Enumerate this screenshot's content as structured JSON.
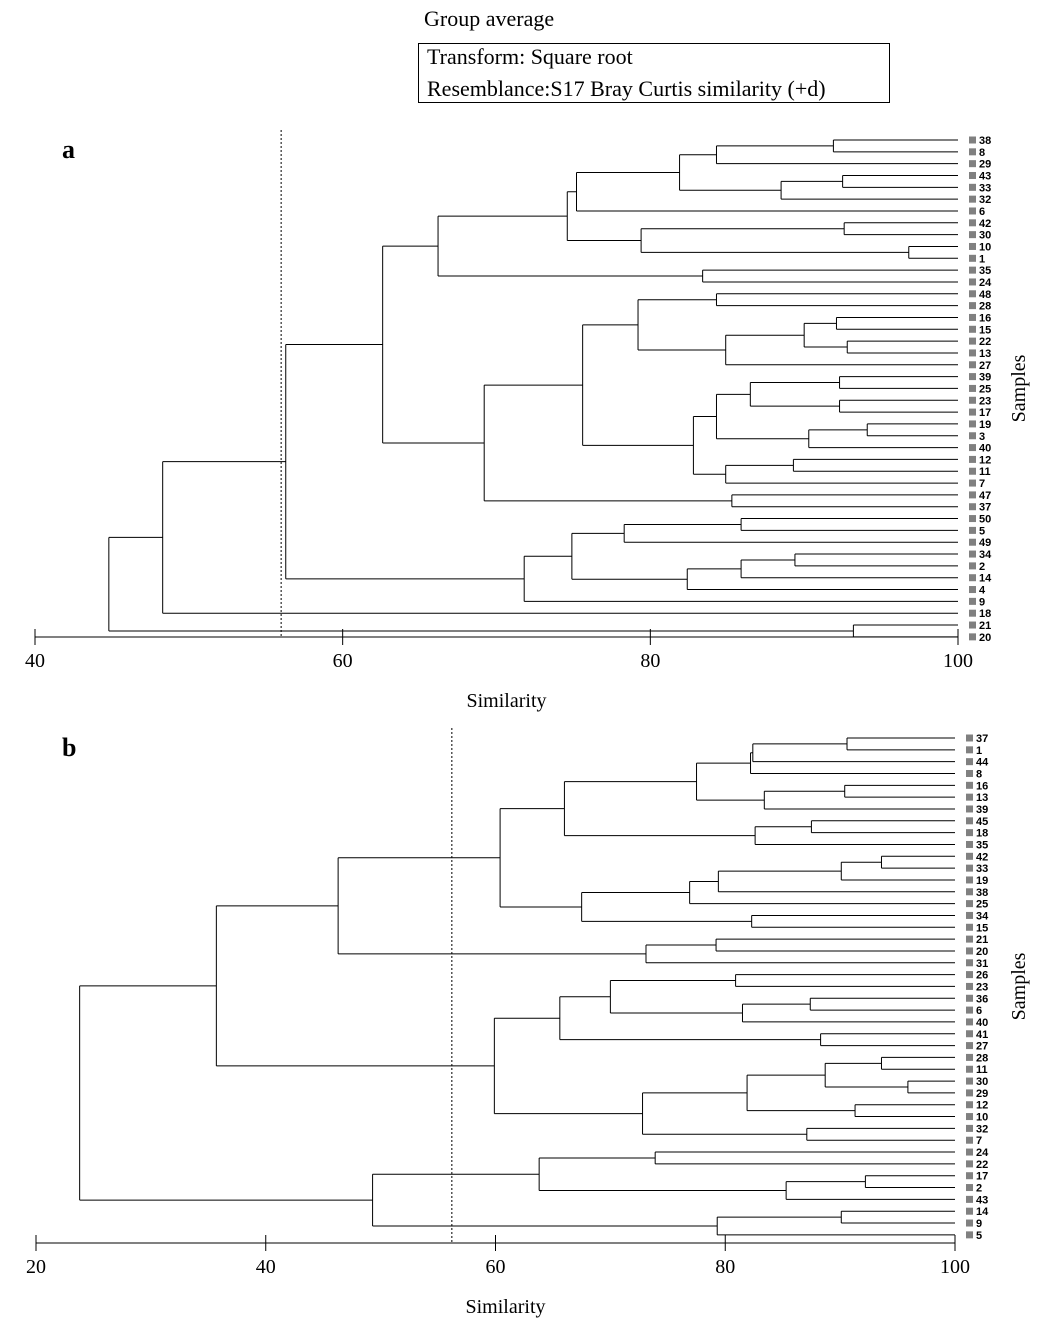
{
  "header": {
    "title": "Group average",
    "transform": "Transform: Square root",
    "resemblance": "Resemblance:S17 Bray Curtis similarity (+d)"
  },
  "chart_data": [
    {
      "type": "dendrogram",
      "panel_label": "a",
      "xlabel": "Similarity",
      "ylabel": "Samples",
      "xlim": [
        40,
        100
      ],
      "xticks": [
        40,
        60,
        80,
        100
      ],
      "cutoff_similarity": 56,
      "leaves": [
        "38",
        "8",
        "29",
        "43",
        "33",
        "32",
        "6",
        "42",
        "30",
        "10",
        "1",
        "35",
        "24",
        "48",
        "28",
        "16",
        "15",
        "22",
        "13",
        "27",
        "39",
        "25",
        "23",
        "17",
        "19",
        "3",
        "40",
        "12",
        "11",
        "7",
        "47",
        "37",
        "50",
        "5",
        "49",
        "34",
        "2",
        "14",
        "4",
        "9",
        "18",
        "21",
        "20"
      ],
      "tree": {
        "s": 44.8,
        "c": [
          {
            "s": 48.3,
            "c": [
              {
                "s": 56.3,
                "c": [
                  {
                    "s": 62.6,
                    "c": [
                      {
                        "s": 66.2,
                        "c": [
                          {
                            "s": 74.6,
                            "c": [
                              {
                                "s": 75.2,
                                "c": [
                                  {
                                    "s": 81.9,
                                    "c": [
                                      {
                                        "s": 84.3,
                                        "c": [
                                          {
                                            "s": 91.9,
                                            "c": [
                                              "38",
                                              "8"
                                            ]
                                          },
                                          "29"
                                        ]
                                      },
                                      {
                                        "s": 88.5,
                                        "c": [
                                          {
                                            "s": 92.5,
                                            "c": [
                                              "43",
                                              "33"
                                            ]
                                          },
                                          "32"
                                        ]
                                      }
                                    ]
                                  },
                                  "6"
                                ]
                              },
                              {
                                "s": 79.4,
                                "c": [
                                  {
                                    "s": 92.6,
                                    "c": [
                                      "42",
                                      "30"
                                    ]
                                  },
                                  {
                                    "s": 96.8,
                                    "c": [
                                      "10",
                                      "1"
                                    ]
                                  }
                                ]
                              }
                            ]
                          },
                          {
                            "s": 83.4,
                            "c": [
                              "35",
                              "24"
                            ]
                          }
                        ]
                      },
                      {
                        "s": 69.2,
                        "c": [
                          {
                            "s": 75.6,
                            "c": [
                              {
                                "s": 79.2,
                                "c": [
                                  {
                                    "s": 84.3,
                                    "c": [
                                      "48",
                                      "28"
                                    ]
                                  },
                                  {
                                    "s": 84.9,
                                    "c": [
                                      {
                                        "s": 90.0,
                                        "c": [
                                          {
                                            "s": 92.1,
                                            "c": [
                                              "16",
                                              "15"
                                            ]
                                          },
                                          {
                                            "s": 92.8,
                                            "c": [
                                              "22",
                                              "13"
                                            ]
                                          }
                                        ]
                                      },
                                      "27"
                                    ]
                                  }
                                ]
                              },
                              {
                                "s": 82.8,
                                "c": [
                                  {
                                    "s": 84.3,
                                    "c": [
                                      {
                                        "s": 86.5,
                                        "c": [
                                          {
                                            "s": 92.3,
                                            "c": [
                                              "39",
                                              "25"
                                            ]
                                          },
                                          {
                                            "s": 92.3,
                                            "c": [
                                              "23",
                                              "17"
                                            ]
                                          }
                                        ]
                                      },
                                      {
                                        "s": 90.3,
                                        "c": [
                                          {
                                            "s": 94.1,
                                            "c": [
                                              "19",
                                              "3"
                                            ]
                                          },
                                          "40"
                                        ]
                                      }
                                    ]
                                  },
                                  {
                                    "s": 84.9,
                                    "c": [
                                      {
                                        "s": 89.3,
                                        "c": [
                                          "12",
                                          "11"
                                        ]
                                      },
                                      "7"
                                    ]
                                  }
                                ]
                              }
                            ]
                          },
                          {
                            "s": 85.3,
                            "c": [
                              "47",
                              "37"
                            ]
                          }
                        ]
                      }
                    ]
                  },
                  {
                    "s": 71.8,
                    "c": [
                      {
                        "s": 74.9,
                        "c": [
                          {
                            "s": 78.3,
                            "c": [
                              {
                                "s": 85.9,
                                "c": [
                                  "50",
                                  "5"
                                ]
                              },
                              "49"
                            ]
                          },
                          {
                            "s": 82.4,
                            "c": [
                              {
                                "s": 85.9,
                                "c": [
                                  {
                                    "s": 89.4,
                                    "c": [
                                      "34",
                                      "2"
                                    ]
                                  },
                                  "14"
                                ]
                              },
                              "4"
                            ]
                          }
                        ]
                      },
                      "9"
                    ]
                  }
                ]
              },
              "18"
            ]
          },
          {
            "s": 93.2,
            "c": [
              "21",
              "20"
            ]
          }
        ]
      }
    },
    {
      "type": "dendrogram",
      "panel_label": "b",
      "xlabel": "Similarity",
      "ylabel": "Samples",
      "xlim": [
        20,
        100
      ],
      "xticks": [
        20,
        40,
        60,
        80,
        100
      ],
      "cutoff_similarity": 56.2,
      "leaves": [
        "37",
        "1",
        "44",
        "8",
        "16",
        "13",
        "39",
        "45",
        "18",
        "35",
        "42",
        "33",
        "19",
        "38",
        "25",
        "34",
        "15",
        "21",
        "20",
        "31",
        "26",
        "23",
        "36",
        "6",
        "40",
        "41",
        "27",
        "28",
        "11",
        "30",
        "29",
        "12",
        "10",
        "32",
        "7",
        "24",
        "22",
        "17",
        "2",
        "43",
        "14",
        "9",
        "5"
      ],
      "tree": {
        "s": 23.8,
        "c": [
          {
            "s": 35.7,
            "c": [
              {
                "s": 46.3,
                "c": [
                  {
                    "s": 60.4,
                    "c": [
                      {
                        "s": 66.0,
                        "c": [
                          {
                            "s": 77.5,
                            "c": [
                              {
                                "s": 82.2,
                                "c": [
                                  {
                                    "s": 82.4,
                                    "c": [
                                      {
                                        "s": 90.6,
                                        "c": [
                                          "37",
                                          "1"
                                        ]
                                      },
                                      "44"
                                    ]
                                  },
                                  "8"
                                ]
                              },
                              {
                                "s": 83.4,
                                "c": [
                                  {
                                    "s": 90.4,
                                    "c": [
                                      "16",
                                      "13"
                                    ]
                                  },
                                  "39"
                                ]
                              }
                            ]
                          },
                          {
                            "s": 82.6,
                            "c": [
                              {
                                "s": 87.5,
                                "c": [
                                  "45",
                                  "18"
                                ]
                              },
                              "35"
                            ]
                          }
                        ]
                      },
                      {
                        "s": 67.5,
                        "c": [
                          {
                            "s": 76.9,
                            "c": [
                              {
                                "s": 79.4,
                                "c": [
                                  {
                                    "s": 90.1,
                                    "c": [
                                      {
                                        "s": 93.6,
                                        "c": [
                                          "42",
                                          "33"
                                        ]
                                      },
                                      "19"
                                    ]
                                  },
                                  "38"
                                ]
                              },
                              "25"
                            ]
                          },
                          {
                            "s": 82.3,
                            "c": [
                              "34",
                              "15"
                            ]
                          }
                        ]
                      }
                    ]
                  },
                  {
                    "s": 73.1,
                    "c": [
                      {
                        "s": 79.2,
                        "c": [
                          "21",
                          "20"
                        ]
                      },
                      "31"
                    ]
                  }
                ]
              },
              {
                "s": 59.9,
                "c": [
                  {
                    "s": 65.6,
                    "c": [
                      {
                        "s": 70.0,
                        "c": [
                          {
                            "s": 80.9,
                            "c": [
                              "26",
                              "23"
                            ]
                          },
                          {
                            "s": 81.5,
                            "c": [
                              {
                                "s": 87.4,
                                "c": [
                                  "36",
                                  "6"
                                ]
                              },
                              "40"
                            ]
                          }
                        ]
                      },
                      {
                        "s": 88.3,
                        "c": [
                          "41",
                          "27"
                        ]
                      }
                    ]
                  },
                  {
                    "s": 72.8,
                    "c": [
                      {
                        "s": 81.9,
                        "c": [
                          {
                            "s": 88.7,
                            "c": [
                              {
                                "s": 93.6,
                                "c": [
                                  "28",
                                  "11"
                                ]
                              },
                              {
                                "s": 95.9,
                                "c": [
                                  "30",
                                  "29"
                                ]
                              }
                            ]
                          },
                          {
                            "s": 91.3,
                            "c": [
                              "12",
                              "10"
                            ]
                          }
                        ]
                      },
                      {
                        "s": 87.1,
                        "c": [
                          "32",
                          "7"
                        ]
                      }
                    ]
                  }
                ]
              }
            ]
          },
          {
            "s": 49.3,
            "c": [
              {
                "s": 63.8,
                "c": [
                  {
                    "s": 73.9,
                    "c": [
                      "24",
                      "22"
                    ]
                  },
                  {
                    "s": 85.3,
                    "c": [
                      {
                        "s": 92.2,
                        "c": [
                          "17",
                          "2"
                        ]
                      },
                      "43"
                    ]
                  }
                ]
              },
              {
                "s": 79.3,
                "c": [
                  {
                    "s": 90.1,
                    "c": [
                      "14",
                      "9"
                    ]
                  },
                  "5"
                ]
              }
            ]
          }
        ]
      }
    }
  ]
}
